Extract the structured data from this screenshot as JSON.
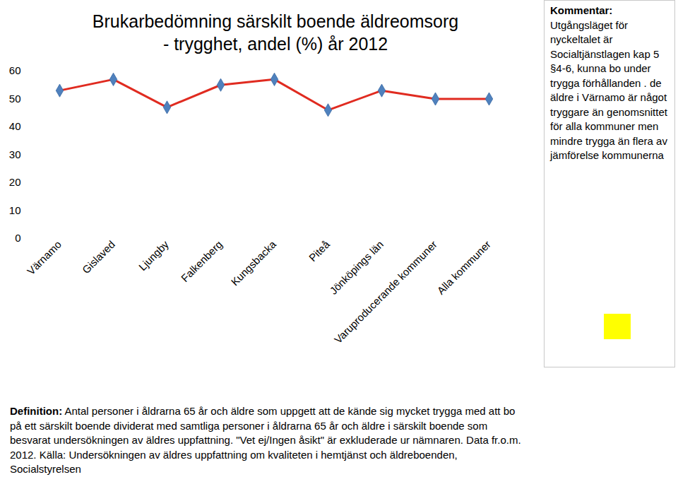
{
  "chart_data": {
    "type": "line",
    "title": "Brukarbedömning särskilt boende äldreomsorg",
    "subtitle": "- trygghet, andel (%) år 2012",
    "categories": [
      "Värnamo",
      "Gislaved",
      "Ljungby",
      "Falkenberg",
      "Kungsbacka",
      "Piteå",
      "Jönköpings län",
      "Varuproducerande kommuner",
      "Alla kommuner"
    ],
    "values": [
      53,
      57,
      47,
      55,
      57,
      46,
      53,
      50,
      50
    ],
    "color": "#e02b20",
    "marker": "diamond",
    "line_style": "solid",
    "ylim": [
      0,
      60
    ],
    "yticks": [
      0,
      10,
      20,
      30,
      40,
      50,
      60
    ],
    "grid": false,
    "annotations": [
      {
        "heading": "Kommentar:",
        "text": "Utgångsläget för nyckeltalet är Socialtjänstlagen kap 5 §4-6, kunna bo under trygga förhållanden . de äldre i Värnamo är något tryggare än genomsnittet för alla kommuner men mindre trygga än flera av jämförelse kommunerna"
      },
      {
        "heading": "Definition:",
        "text": "Antal personer i åldrarna 65 år och äldre som uppgett att de kände sig mycket trygga med att bo på ett särskilt boende dividerat med samtliga personer i åldrarna 65 år och äldre i särskilt boende som besvarat undersökningen av äldres uppfattning. \"Vet ej/Ingen åsikt\" är exkluderade ur nämnaren. Data fr.o.m. 2012. Källa: Undersökningen av äldres uppfattning om kvaliteten i hemtjänst och äldreboenden, Socialstyrelsen"
      }
    ]
  }
}
